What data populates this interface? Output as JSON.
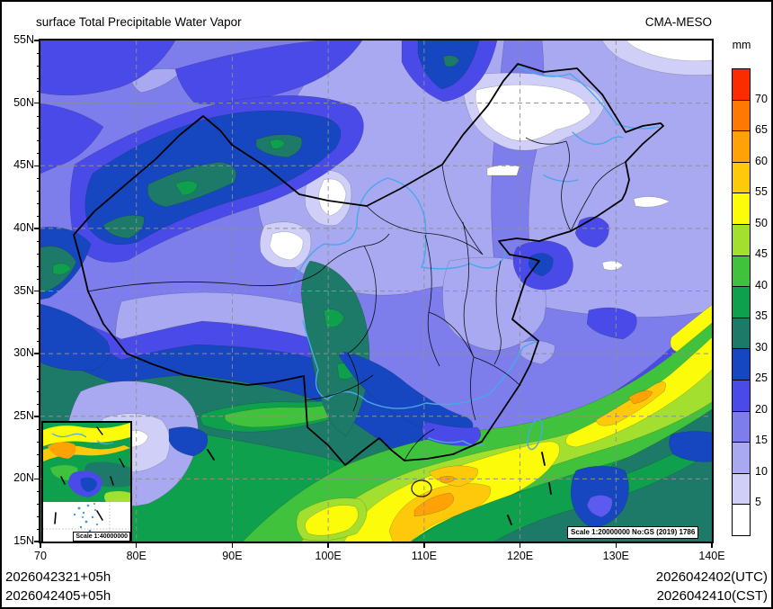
{
  "header": {
    "title": "surface Total Precipitable Water Vapor",
    "model": "CMA-MESO"
  },
  "colorbar": {
    "unit": "mm",
    "colors": [
      "#fb2d00",
      "#fd7903",
      "#fea207",
      "#fec90a",
      "#fcfc0a",
      "#a2df2e",
      "#40c23c",
      "#0fa04e",
      "#1d7a68",
      "#1647c1",
      "#4a4ae9",
      "#7d7dec",
      "#a9a9f1",
      "#cfcff7",
      "#ffffff"
    ],
    "tick_labels": [
      "70",
      "65",
      "60",
      "55",
      "50",
      "45",
      "40",
      "35",
      "30",
      "25",
      "20",
      "15",
      "10",
      "5"
    ]
  },
  "axes": {
    "lat_ticks": [
      "55N",
      "50N",
      "45N",
      "40N",
      "35N",
      "30N",
      "25N",
      "20N",
      "15N"
    ],
    "lon_ticks": [
      "70",
      "80E",
      "90E",
      "100E",
      "110E",
      "120E",
      "130E",
      "140E"
    ]
  },
  "annotations": {
    "map_scale_note": "Scale 1:20000000 No:GS (2019) 1786",
    "inset_scale_note": "Scale 1:40000000"
  },
  "footer": {
    "left_line1": "2026042321+05h",
    "left_line2": "2026042405+05h",
    "right_line1": "2026042402(UTC)",
    "right_line2": "2026042410(CST)"
  }
}
